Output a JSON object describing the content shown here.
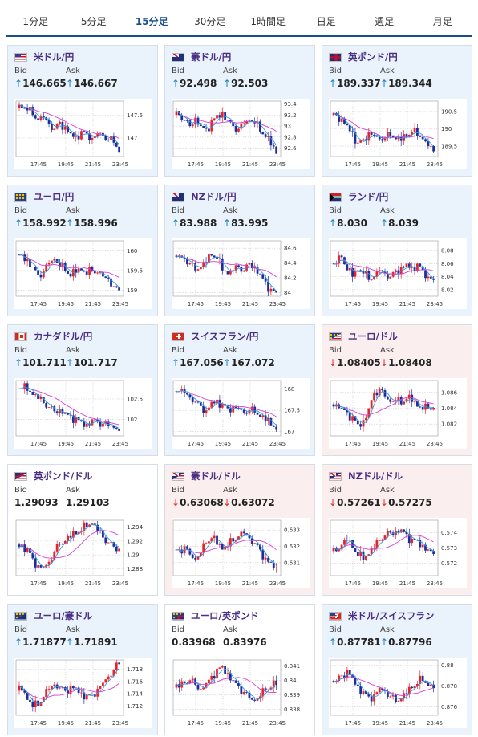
{
  "tabs": [
    {
      "label": "1分足",
      "active": false
    },
    {
      "label": "5分足",
      "active": false
    },
    {
      "label": "15分足",
      "active": true
    },
    {
      "label": "30分足",
      "active": false
    },
    {
      "label": "1時間足",
      "active": false
    },
    {
      "label": "日足",
      "active": false
    },
    {
      "label": "週足",
      "active": false
    },
    {
      "label": "月足",
      "active": false
    }
  ],
  "bid_label": "Bid",
  "ask_label": "Ask",
  "time_ticks": [
    "17:45",
    "19:45",
    "21:45",
    "23:45"
  ],
  "colors": {
    "up_arrow": "#1a7fc1",
    "down_arrow": "#d9302c",
    "candle_up": "#e8232a",
    "candle_down": "#1d2e9c",
    "ma_fast": "#2f9ae0",
    "ma_slow": "#d63fd6",
    "pair_text": "#4a2f82"
  },
  "cards": [
    {
      "pair": "米ドル/円",
      "flag": "us",
      "trend": "up",
      "bid": "146.665",
      "ask": "146.667",
      "y_ticks": [
        "147.5",
        "147"
      ],
      "chart_data": {
        "type": "candlestick",
        "y_ticks": [
          147.5,
          147
        ],
        "path": [
          147.65,
          147.6,
          147.5,
          147.4,
          147.45,
          147.3,
          147.2,
          147.35,
          147.25,
          147.1,
          147.05,
          147.15,
          147.1,
          147.0,
          147.1,
          147.05,
          146.95,
          146.9,
          146.7
        ],
        "ylim": [
          146.6,
          147.8
        ]
      }
    },
    {
      "pair": "豪ドル/円",
      "flag": "au",
      "trend": "up",
      "bid": "92.498",
      "ask": "92.503",
      "y_ticks": [
        "93.4",
        "93.2",
        "93",
        "92.8",
        "92.6"
      ],
      "chart_data": {
        "type": "candlestick",
        "y_ticks": [
          93.4,
          93.2,
          93,
          92.8,
          92.6
        ],
        "path": [
          93.2,
          93.1,
          93.0,
          93.15,
          93.0,
          92.95,
          93.1,
          93.2,
          93.25,
          93.1,
          93.0,
          92.95,
          93.05,
          93.1,
          93.05,
          92.9,
          92.8,
          92.65,
          92.5
        ],
        "ylim": [
          92.45,
          93.45
        ]
      }
    },
    {
      "pair": "英ポンド/円",
      "flag": "gb",
      "trend": "up",
      "bid": "189.337",
      "ask": "189.344",
      "y_ticks": [
        "190.5",
        "190",
        "189.5"
      ],
      "chart_data": {
        "type": "candlestick",
        "y_ticks": [
          190.5,
          190,
          189.5
        ],
        "path": [
          190.4,
          190.3,
          190.1,
          189.9,
          189.6,
          189.7,
          189.9,
          189.8,
          189.7,
          189.75,
          189.8,
          189.7,
          189.65,
          189.75,
          189.9,
          189.8,
          189.7,
          189.5,
          189.35
        ],
        "ylim": [
          189.2,
          190.8
        ]
      }
    },
    {
      "pair": "ユーロ/円",
      "flag": "eu",
      "trend": "up",
      "bid": "158.992",
      "ask": "158.996",
      "y_ticks": [
        "160",
        "159.5",
        "159"
      ],
      "chart_data": {
        "type": "candlestick",
        "y_ticks": [
          160,
          159.5,
          159
        ],
        "path": [
          159.9,
          159.8,
          159.6,
          159.4,
          159.5,
          159.7,
          159.8,
          159.6,
          159.5,
          159.35,
          159.45,
          159.5,
          159.4,
          159.5,
          159.45,
          159.35,
          159.3,
          159.1,
          159.0
        ],
        "ylim": [
          158.85,
          160.25
        ]
      }
    },
    {
      "pair": "NZドル/円",
      "flag": "nz",
      "trend": "up",
      "bid": "83.988",
      "ask": "83.995",
      "y_ticks": [
        "84.6",
        "84.4",
        "84.2",
        "84"
      ],
      "chart_data": {
        "type": "candlestick",
        "y_ticks": [
          84.6,
          84.4,
          84.2,
          84
        ],
        "path": [
          84.5,
          84.45,
          84.4,
          84.3,
          84.35,
          84.4,
          84.5,
          84.45,
          84.3,
          84.25,
          84.3,
          84.35,
          84.3,
          84.4,
          84.35,
          84.25,
          84.15,
          84.05,
          84.0
        ],
        "ylim": [
          83.95,
          84.7
        ]
      }
    },
    {
      "pair": "ランド/円",
      "flag": "za",
      "trend": "up",
      "bid": "8.030",
      "ask": "8.039",
      "y_ticks": [
        "8.08",
        "8.06",
        "8.04",
        "8.02"
      ],
      "chart_data": {
        "type": "candlestick",
        "y_ticks": [
          8.08,
          8.06,
          8.04,
          8.02
        ],
        "path": [
          8.06,
          8.07,
          8.05,
          8.04,
          8.05,
          8.045,
          8.035,
          8.04,
          8.05,
          8.045,
          8.04,
          8.05,
          8.055,
          8.06,
          8.055,
          8.06,
          8.05,
          8.04,
          8.035
        ],
        "ylim": [
          8.01,
          8.095
        ]
      }
    },
    {
      "pair": "カナダドル/円",
      "flag": "ca",
      "trend": "up",
      "bid": "101.711",
      "ask": "101.717",
      "y_ticks": [
        "102.5",
        "102"
      ],
      "chart_data": {
        "type": "candlestick",
        "y_ticks": [
          102.5,
          102
        ],
        "path": [
          102.75,
          102.7,
          102.6,
          102.5,
          102.4,
          102.3,
          102.2,
          102.25,
          102.15,
          102.1,
          102.05,
          101.95,
          101.9,
          102.0,
          101.95,
          101.9,
          101.85,
          101.8,
          101.72
        ],
        "ylim": [
          101.6,
          102.95
        ]
      }
    },
    {
      "pair": "スイスフラン/円",
      "flag": "ch",
      "trend": "up",
      "bid": "167.056",
      "ask": "167.072",
      "y_ticks": [
        "168",
        "167.5",
        "167"
      ],
      "chart_data": {
        "type": "candlestick",
        "y_ticks": [
          168,
          167.5,
          167
        ],
        "path": [
          167.95,
          167.9,
          167.8,
          167.7,
          167.6,
          167.5,
          167.7,
          167.75,
          167.65,
          167.55,
          167.6,
          167.55,
          167.45,
          167.5,
          167.45,
          167.35,
          167.25,
          167.15,
          167.06
        ],
        "ylim": [
          166.9,
          168.2
        ]
      }
    },
    {
      "pair": "ユーロ/ドル",
      "flag": "eu-us",
      "trend": "down",
      "bid": "1.08405",
      "ask": "1.08408",
      "y_ticks": [
        "1.086",
        "1.084",
        "1.082"
      ],
      "chart_data": {
        "type": "candlestick",
        "y_ticks": [
          1.086,
          1.084,
          1.082
        ],
        "path": [
          1.0845,
          1.084,
          1.0835,
          1.083,
          1.082,
          1.0825,
          1.084,
          1.086,
          1.0865,
          1.0855,
          1.0848,
          1.085,
          1.0845,
          1.0852,
          1.0848,
          1.0842,
          1.0838,
          1.084,
          1.08405
        ],
        "ylim": [
          1.0805,
          1.0875
        ]
      }
    },
    {
      "pair": "英ポンド/ドル",
      "flag": "gb-us",
      "trend": "flat",
      "bid": "1.29093",
      "ask": "1.29103",
      "y_ticks": [
        "1.294",
        "1.292",
        "1.29",
        "1.288"
      ],
      "chart_data": {
        "type": "candlestick",
        "y_ticks": [
          1.294,
          1.292,
          1.29,
          1.288
        ],
        "path": [
          1.2915,
          1.291,
          1.2895,
          1.2885,
          1.2882,
          1.289,
          1.2905,
          1.2915,
          1.292,
          1.2925,
          1.293,
          1.2935,
          1.294,
          1.2945,
          1.2935,
          1.2925,
          1.2918,
          1.2912,
          1.2909
        ],
        "ylim": [
          1.287,
          1.295
        ]
      }
    },
    {
      "pair": "豪ドル/ドル",
      "flag": "au-us",
      "trend": "down",
      "bid": "0.63068",
      "ask": "0.63072",
      "y_ticks": [
        "0.633",
        "0.632",
        "0.631"
      ],
      "chart_data": {
        "type": "candlestick",
        "y_ticks": [
          0.633,
          0.632,
          0.631
        ],
        "path": [
          0.6318,
          0.632,
          0.6315,
          0.6312,
          0.6316,
          0.6322,
          0.6325,
          0.6321,
          0.6318,
          0.632,
          0.6323,
          0.6326,
          0.6328,
          0.6325,
          0.6322,
          0.6318,
          0.6313,
          0.631,
          0.63068
        ],
        "ylim": [
          0.6302,
          0.6336
        ]
      }
    },
    {
      "pair": "NZドル/ドル",
      "flag": "nz-us",
      "trend": "down",
      "bid": "0.57261",
      "ask": "0.57275",
      "y_ticks": [
        "0.574",
        "0.573",
        "0.572"
      ],
      "chart_data": {
        "type": "candlestick",
        "y_ticks": [
          0.574,
          0.573,
          0.572
        ],
        "path": [
          0.5728,
          0.5732,
          0.5735,
          0.573,
          0.5725,
          0.5722,
          0.5726,
          0.573,
          0.5735,
          0.5738,
          0.574,
          0.5741,
          0.5742,
          0.5739,
          0.5736,
          0.5735,
          0.5732,
          0.5729,
          0.57261
        ],
        "ylim": [
          0.5712,
          0.5748
        ]
      }
    },
    {
      "pair": "ユーロ/豪ドル",
      "flag": "eu-au",
      "trend": "up",
      "bid": "1.71877",
      "ask": "1.71891",
      "y_ticks": [
        "1.718",
        "1.716",
        "1.714",
        "1.712"
      ],
      "chart_data": {
        "type": "candlestick",
        "y_ticks": [
          1.718,
          1.716,
          1.714,
          1.712
        ],
        "path": [
          1.7145,
          1.713,
          1.7118,
          1.712,
          1.7135,
          1.7148,
          1.7155,
          1.715,
          1.7145,
          1.7152,
          1.715,
          1.7142,
          1.7138,
          1.714,
          1.7148,
          1.7158,
          1.7168,
          1.7178,
          1.7188
        ],
        "ylim": [
          1.7105,
          1.7195
        ]
      }
    },
    {
      "pair": "ユーロ/英ポンド",
      "flag": "eu-gb",
      "trend": "flat",
      "bid": "0.83968",
      "ask": "0.83976",
      "y_ticks": [
        "0.841",
        "0.84",
        "0.839",
        "0.838"
      ],
      "chart_data": {
        "type": "candlestick",
        "y_ticks": [
          0.841,
          0.84,
          0.839,
          0.838
        ],
        "path": [
          0.8395,
          0.8398,
          0.84,
          0.8397,
          0.8394,
          0.8398,
          0.8403,
          0.8408,
          0.841,
          0.8405,
          0.84,
          0.8396,
          0.8392,
          0.8388,
          0.8386,
          0.8389,
          0.8393,
          0.8395,
          0.83968
        ],
        "ylim": [
          0.8376,
          0.8414
        ]
      }
    },
    {
      "pair": "米ドル/スイスフラン",
      "flag": "us-ch",
      "trend": "up",
      "bid": "0.87781",
      "ask": "0.87796",
      "y_ticks": [
        "0.88",
        "0.878",
        "0.876"
      ],
      "chart_data": {
        "type": "candlestick",
        "y_ticks": [
          0.88,
          0.878,
          0.876
        ],
        "path": [
          0.8785,
          0.879,
          0.8795,
          0.8788,
          0.878,
          0.8775,
          0.877,
          0.8772,
          0.8778,
          0.8775,
          0.877,
          0.8765,
          0.8768,
          0.8772,
          0.8778,
          0.8782,
          0.8785,
          0.878,
          0.8778
        ],
        "ylim": [
          0.8752,
          0.8805
        ]
      }
    }
  ]
}
